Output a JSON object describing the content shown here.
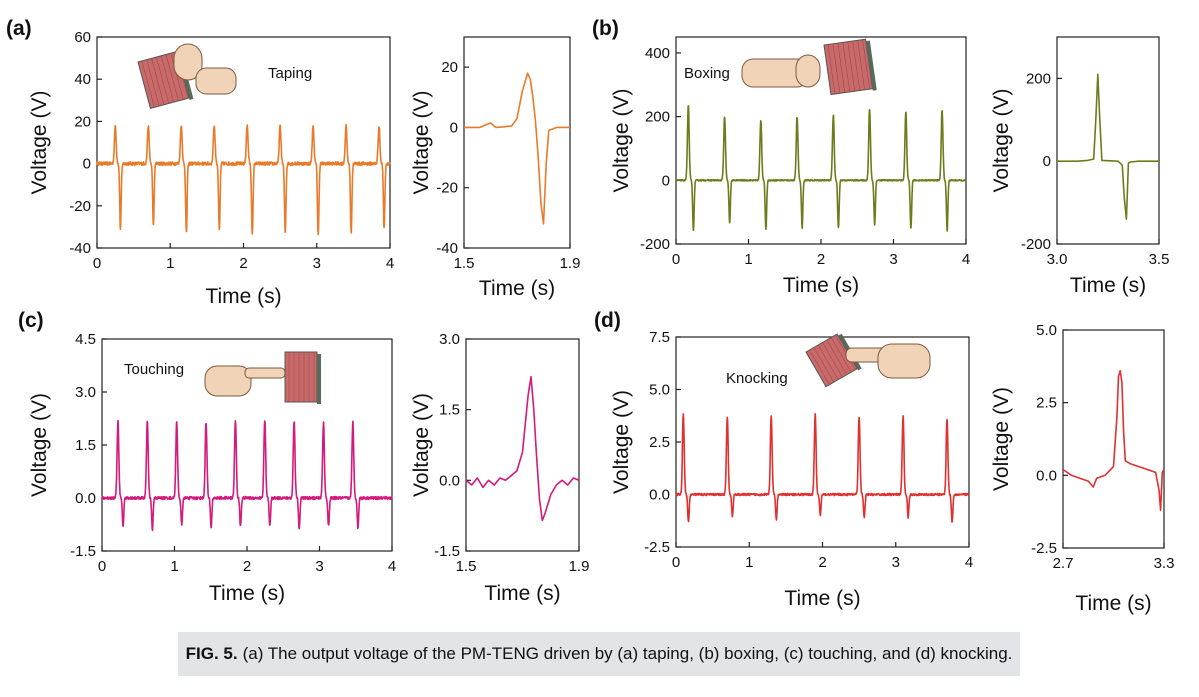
{
  "caption": {
    "label": "FIG. 5.",
    "text": "(a) The output voltage of the PM-TENG driven by (a) taping, (b) boxing, (c) touching, and (d) knocking."
  },
  "panels": [
    {
      "letter": "(a)",
      "annotation": "Taping",
      "icon": "fist-tapping-panel-icon"
    },
    {
      "letter": "(b)",
      "annotation": "Boxing",
      "icon": "fist-punching-panel-icon"
    },
    {
      "letter": "(c)",
      "annotation": "Touching",
      "icon": "finger-touching-panel-icon"
    },
    {
      "letter": "(d)",
      "annotation": "Knocking",
      "icon": "hand-knocking-panel-icon"
    }
  ],
  "chart_data": [
    {
      "id": "a-main",
      "type": "line",
      "color": "#e87a2a",
      "xlabel": "Time (s)",
      "ylabel": "Voltage (V)",
      "xlim": [
        0,
        4
      ],
      "ylim": [
        -40,
        60
      ],
      "xticks": [
        0,
        1,
        2,
        3,
        4
      ],
      "yticks": [
        -40,
        -20,
        0,
        20,
        40,
        60
      ],
      "pulse": {
        "first_peak_time": 0.25,
        "period": 0.45,
        "count": 9,
        "peak": [
          18,
          18,
          18,
          18,
          18,
          18,
          18,
          18,
          18
        ],
        "trough": [
          -31,
          -30,
          -33,
          -32,
          -34,
          -33,
          -34,
          -33,
          -31
        ],
        "baseline": 0,
        "noise": 0.8
      }
    },
    {
      "id": "a-zoom",
      "type": "line",
      "color": "#e87a2a",
      "xlabel": "Time (s)",
      "ylabel": "Voltage (V)",
      "xlim": [
        1.5,
        1.9
      ],
      "ylim": [
        -40,
        30
      ],
      "xticks": [
        1.5,
        1.9
      ],
      "yticks": [
        -40,
        -20,
        0,
        20
      ],
      "x": [
        1.5,
        1.56,
        1.6,
        1.62,
        1.65,
        1.68,
        1.7,
        1.72,
        1.74,
        1.75,
        1.76,
        1.77,
        1.78,
        1.79,
        1.8,
        1.81,
        1.82,
        1.85,
        1.9
      ],
      "y": [
        0,
        0,
        1.5,
        0,
        0.2,
        0.5,
        3,
        12,
        18,
        16,
        10,
        2,
        -10,
        -25,
        -32,
        -12,
        -1,
        0,
        0
      ]
    },
    {
      "id": "b-main",
      "type": "line",
      "color": "#6f7a1a",
      "xlabel": "Time (s)",
      "ylabel": "Voltage (V)",
      "xlim": [
        0,
        4
      ],
      "ylim": [
        -200,
        450
      ],
      "xticks": [
        0,
        1,
        2,
        3,
        4
      ],
      "yticks": [
        -200,
        0,
        200,
        400
      ],
      "pulse": {
        "first_peak_time": 0.17,
        "period": 0.5,
        "count": 8,
        "peak": [
          235,
          200,
          190,
          200,
          205,
          225,
          215,
          220
        ],
        "trough": [
          -155,
          -135,
          -155,
          -150,
          -150,
          -140,
          -150,
          -160
        ],
        "baseline": 0,
        "noise": 2
      }
    },
    {
      "id": "b-zoom",
      "type": "line",
      "color": "#6f7a1a",
      "xlabel": "Time (s)",
      "ylabel": "Voltage (V)",
      "xlim": [
        3,
        3.5
      ],
      "ylim": [
        -200,
        300
      ],
      "xticks": [
        3,
        3.5
      ],
      "yticks": [
        -200,
        0,
        200
      ],
      "x": [
        3,
        3.1,
        3.15,
        3.18,
        3.19,
        3.2,
        3.21,
        3.22,
        3.3,
        3.32,
        3.33,
        3.34,
        3.35,
        3.36,
        3.4,
        3.5
      ],
      "y": [
        0,
        0,
        2,
        5,
        100,
        210,
        100,
        2,
        0,
        -10,
        -90,
        -140,
        -5,
        -2,
        0,
        0
      ]
    },
    {
      "id": "c-main",
      "type": "line",
      "color": "#d41a7a",
      "xlabel": "Time (s)",
      "ylabel": "Voltage (V)",
      "xlim": [
        0,
        4
      ],
      "ylim": [
        -1.5,
        4.5
      ],
      "xticks": [
        0,
        1,
        2,
        3,
        4
      ],
      "yticks": [
        -1.5,
        0.0,
        1.5,
        3.0,
        4.5
      ],
      "pulse": {
        "first_peak_time": 0.22,
        "period": 0.405,
        "count": 9,
        "peak": [
          2.2,
          2.2,
          2.15,
          2.15,
          2.2,
          2.2,
          2.2,
          2.15,
          2.15
        ],
        "trough": [
          -0.8,
          -0.9,
          -0.8,
          -0.85,
          -0.8,
          -0.8,
          -0.85,
          -0.8,
          -0.85
        ],
        "baseline": 0,
        "noise": 0.04
      }
    },
    {
      "id": "c-zoom",
      "type": "line",
      "color": "#d41a7a",
      "xlabel": "Time (s)",
      "ylabel": "Voltage (V)",
      "xlim": [
        1.5,
        1.9
      ],
      "ylim": [
        -1.5,
        3.0
      ],
      "xticks": [
        1.5,
        1.9
      ],
      "yticks": [
        -1.5,
        0.0,
        1.5,
        3.0
      ],
      "x": [
        1.5,
        1.52,
        1.54,
        1.56,
        1.58,
        1.6,
        1.62,
        1.64,
        1.66,
        1.68,
        1.7,
        1.72,
        1.73,
        1.74,
        1.75,
        1.76,
        1.77,
        1.78,
        1.8,
        1.82,
        1.84,
        1.86,
        1.88,
        1.9
      ],
      "y": [
        0,
        -0.1,
        0.05,
        -0.15,
        0,
        -0.1,
        0.05,
        0,
        0.1,
        0.2,
        0.6,
        1.8,
        2.2,
        1.5,
        0.5,
        -0.4,
        -0.85,
        -0.7,
        -0.3,
        -0.1,
        0,
        -0.1,
        0.05,
        0
      ]
    },
    {
      "id": "d-main",
      "type": "line",
      "color": "#e03030",
      "xlabel": "Time (s)",
      "ylabel": "Voltage (V)",
      "xlim": [
        0,
        4
      ],
      "ylim": [
        -2.5,
        7.5
      ],
      "xticks": [
        0,
        1,
        2,
        3,
        4
      ],
      "yticks": [
        -2.5,
        0.0,
        2.5,
        5.0,
        7.5
      ],
      "pulse": {
        "first_peak_time": 0.1,
        "period": 0.6,
        "count": 7,
        "peak": [
          3.8,
          3.7,
          3.7,
          3.8,
          3.7,
          3.7,
          3.6
        ],
        "trough": [
          -1.3,
          -1.1,
          -1.2,
          -1.0,
          -1.1,
          -1.1,
          -1.3
        ],
        "baseline": 0,
        "noise": 0.05
      }
    },
    {
      "id": "d-zoom",
      "type": "line",
      "color": "#e03030",
      "xlabel": "Time (s)",
      "ylabel": "Voltage (V)",
      "xlim": [
        2.7,
        3.3
      ],
      "ylim": [
        -2.5,
        5.0
      ],
      "xticks": [
        2.7,
        3.3
      ],
      "yticks": [
        -2.5,
        0.0,
        2.5,
        5.0
      ],
      "x": [
        2.7,
        2.75,
        2.8,
        2.85,
        2.88,
        2.9,
        2.95,
        3.0,
        3.02,
        3.03,
        3.04,
        3.05,
        3.06,
        3.07,
        3.1,
        3.15,
        3.2,
        3.25,
        3.27,
        3.28,
        3.29,
        3.3
      ],
      "y": [
        0.2,
        0,
        -0.1,
        -0.2,
        -0.4,
        -0.1,
        0,
        0.3,
        2,
        3.4,
        3.6,
        3.2,
        1.5,
        0.5,
        0.4,
        0.3,
        0.2,
        0.1,
        -0.5,
        -1.2,
        0.1,
        0.2
      ]
    }
  ]
}
